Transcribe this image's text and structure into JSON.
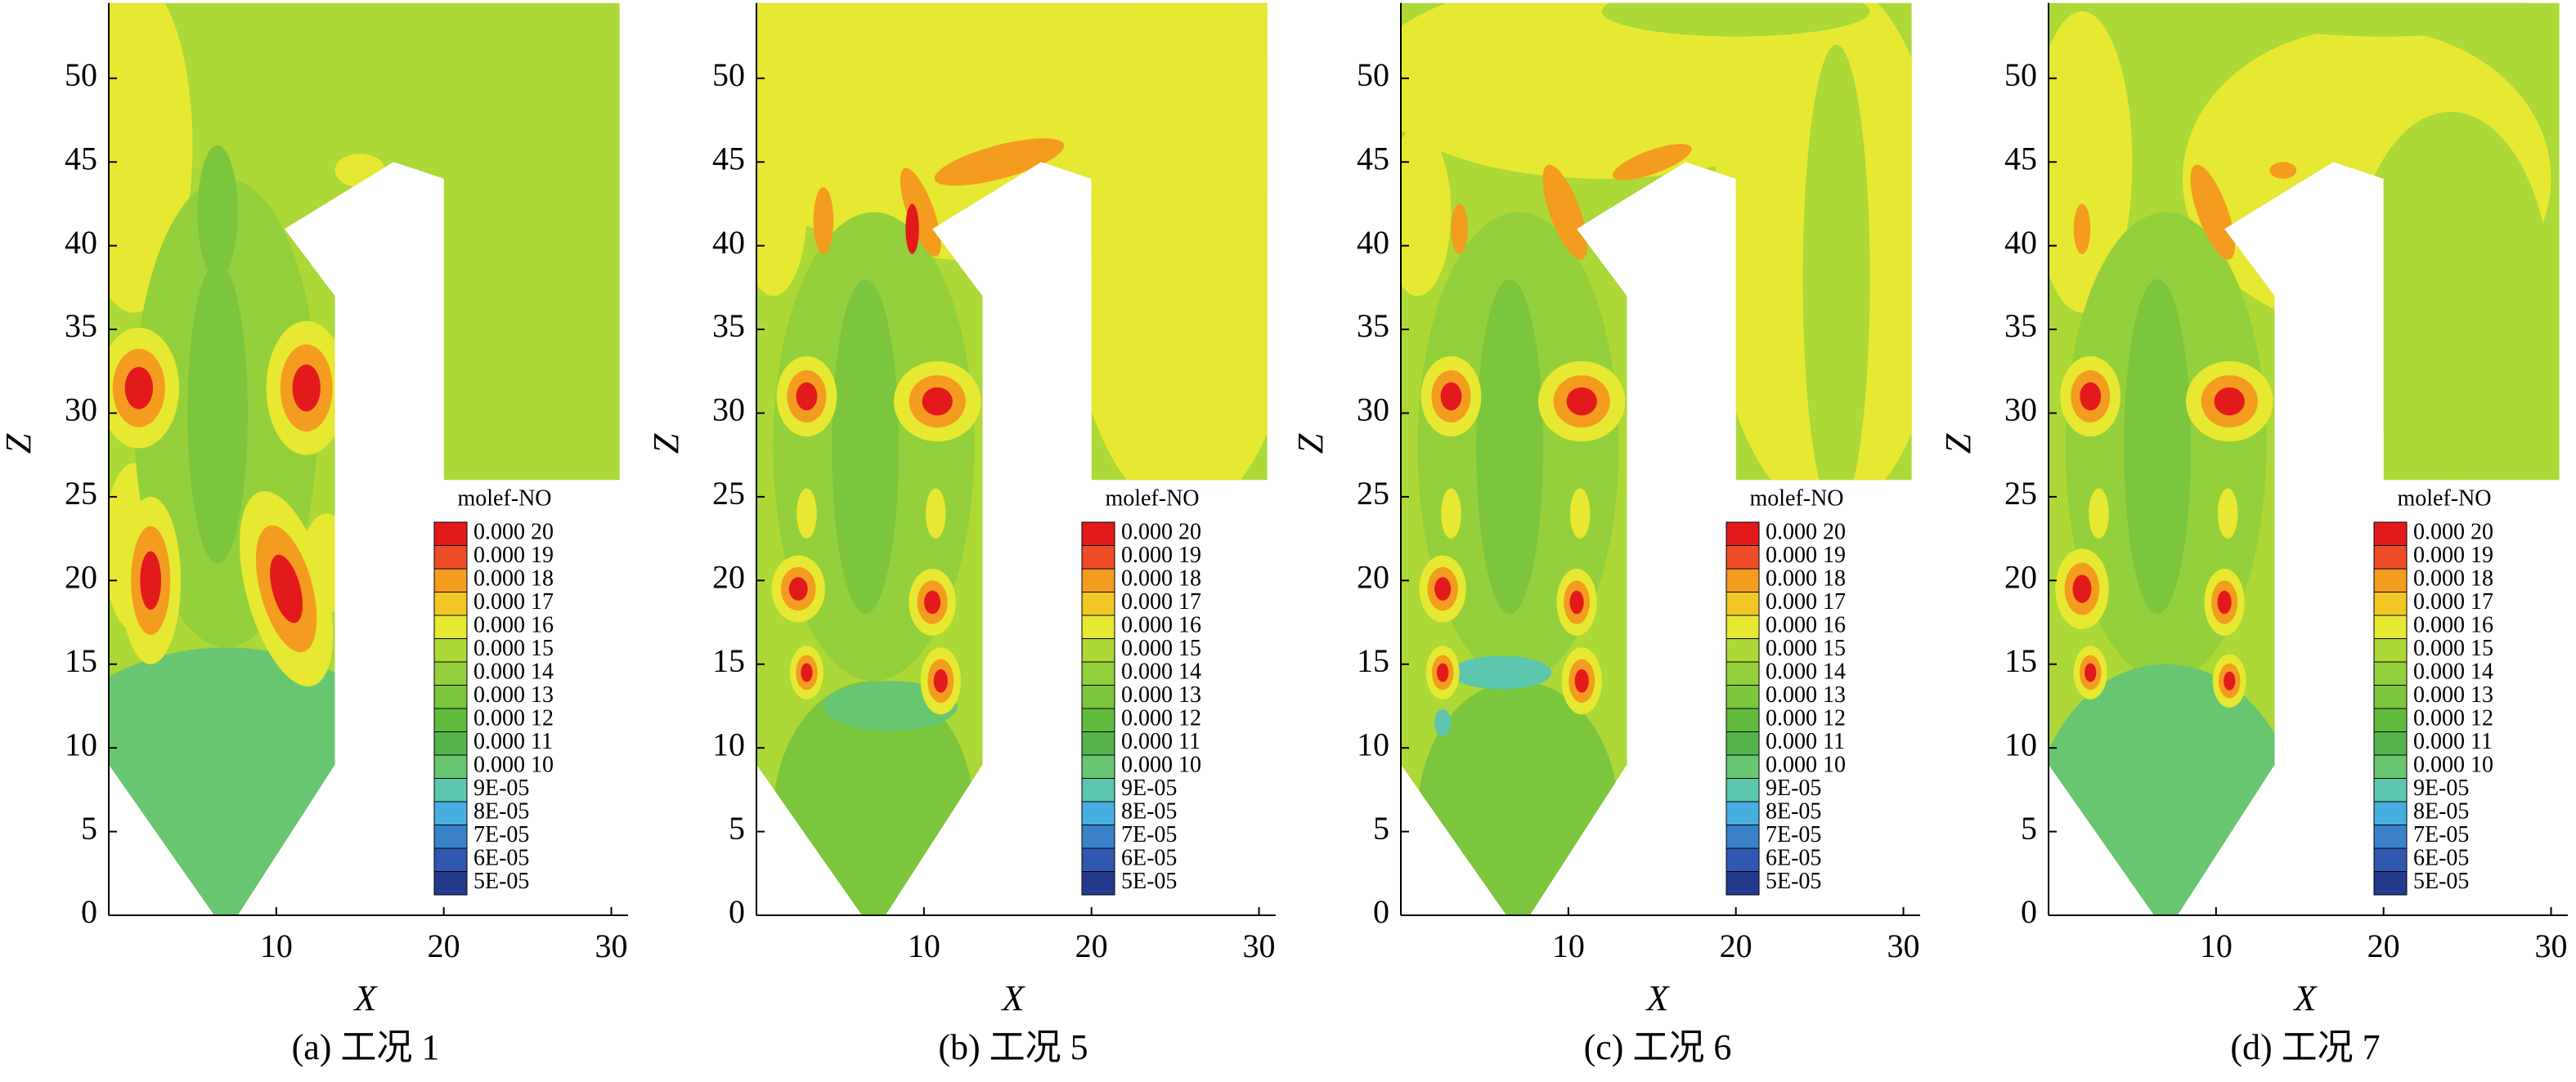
{
  "colorbar": {
    "title": "molef-NO",
    "levels": [
      {
        "value": 0.0002,
        "label": "0.000 20"
      },
      {
        "value": 0.00019,
        "label": "0.000 19"
      },
      {
        "value": 0.00018,
        "label": "0.000 18"
      },
      {
        "value": 0.00017,
        "label": "0.000 17"
      },
      {
        "value": 0.00016,
        "label": "0.000 16"
      },
      {
        "value": 0.00015,
        "label": "0.000 15"
      },
      {
        "value": 0.00014,
        "label": "0.000 14"
      },
      {
        "value": 0.00013,
        "label": "0.000 13"
      },
      {
        "value": 0.00012,
        "label": "0.000 12"
      },
      {
        "value": 0.00011,
        "label": "0.000 11"
      },
      {
        "value": 0.0001,
        "label": "0.000 10"
      },
      {
        "value": 9e-05,
        "label": "9E-05"
      },
      {
        "value": 8e-05,
        "label": "8E-05"
      },
      {
        "value": 7e-05,
        "label": "7E-05"
      },
      {
        "value": 6e-05,
        "label": "6E-05"
      },
      {
        "value": 5e-05,
        "label": "5E-05"
      }
    ],
    "colors": [
      "#e31a1c",
      "#ee4b27",
      "#f39c1f",
      "#f2c624",
      "#e6e832",
      "#acd838",
      "#94d03b",
      "#7cc63d",
      "#62bb3f",
      "#55b44c",
      "#68c671",
      "#5cc6ae",
      "#48aee0",
      "#3a82c8",
      "#3058b0",
      "#233a8c"
    ]
  },
  "chart_data": [
    {
      "type": "contour",
      "caption": "(a) 工况 1",
      "x_label": "X",
      "y_label": "Z",
      "xlim": [
        0,
        31
      ],
      "ylim": [
        0,
        54.5
      ],
      "xticks": [
        10,
        20,
        30
      ],
      "yticks": [
        0,
        5,
        10,
        15,
        20,
        25,
        30,
        35,
        40,
        45,
        50
      ]
    },
    {
      "type": "contour",
      "caption": "(b) 工况 5",
      "x_label": "X",
      "y_label": "Z",
      "xlim": [
        0,
        31
      ],
      "ylim": [
        0,
        54.5
      ],
      "xticks": [
        10,
        20,
        30
      ],
      "yticks": [
        0,
        5,
        10,
        15,
        20,
        25,
        30,
        35,
        40,
        45,
        50
      ]
    },
    {
      "type": "contour",
      "caption": "(c) 工况 6",
      "x_label": "X",
      "y_label": "Z",
      "xlim": [
        0,
        31
      ],
      "ylim": [
        0,
        54.5
      ],
      "xticks": [
        10,
        20,
        30
      ],
      "yticks": [
        0,
        5,
        10,
        15,
        20,
        25,
        30,
        35,
        40,
        45,
        50
      ]
    },
    {
      "type": "contour",
      "caption": "(d) 工况 7",
      "x_label": "X",
      "y_label": "Z",
      "xlim": [
        0,
        31
      ],
      "ylim": [
        0,
        54.5
      ],
      "xticks": [
        10,
        20,
        30
      ],
      "yticks": [
        0,
        5,
        10,
        15,
        20,
        25,
        30,
        35,
        40,
        45,
        50
      ]
    }
  ]
}
